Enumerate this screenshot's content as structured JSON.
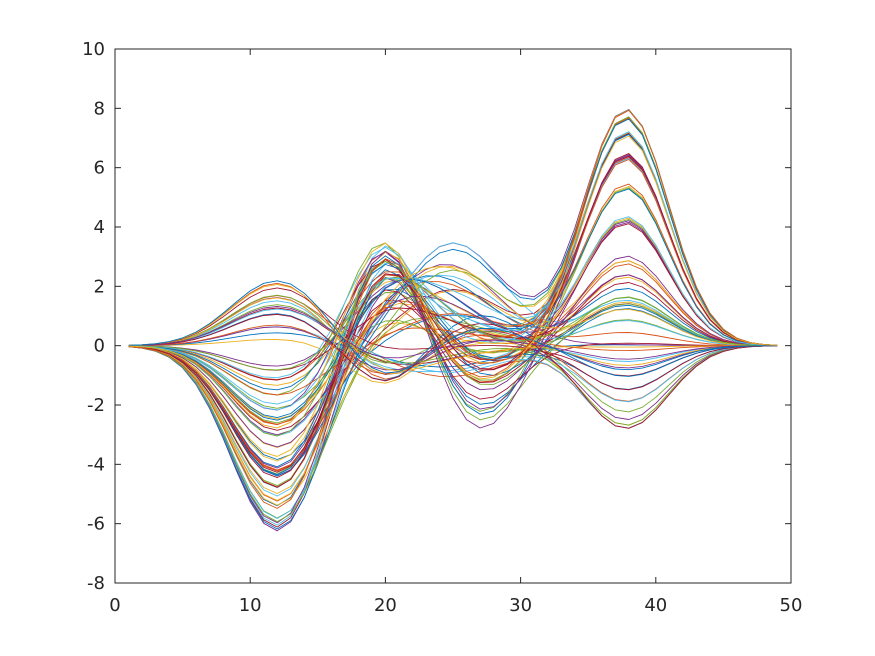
{
  "chart_data": {
    "type": "line",
    "title": "",
    "xlabel": "",
    "ylabel": "",
    "xlim": [
      0,
      50
    ],
    "ylim": [
      -8,
      10
    ],
    "x_ticks": [
      0,
      10,
      20,
      30,
      40,
      50
    ],
    "y_ticks": [
      -8,
      -6,
      -4,
      -2,
      0,
      2,
      4,
      6,
      8,
      10
    ],
    "x_tick_labels": [
      "0",
      "10",
      "20",
      "30",
      "40",
      "50"
    ],
    "y_tick_labels": [
      "-8",
      "-6",
      "-4",
      "-2",
      "0",
      "2",
      "4",
      "6",
      "8",
      "10"
    ],
    "grid": false,
    "legend": "none",
    "x": [
      1,
      49
    ],
    "series_count": 80,
    "colors": [
      "#0072BD",
      "#D95319",
      "#EDB120",
      "#7E2F8E",
      "#77AC30",
      "#4DBEEE",
      "#A2142F"
    ],
    "envelope": {
      "min_trough": {
        "x": 12,
        "y": -6.5
      },
      "first_peak": {
        "x": 20,
        "y": 3.75
      },
      "second_peak": {
        "x": 25,
        "y": 3.6
      },
      "second_trough": {
        "x": 27,
        "y": -3.0
      },
      "max_peak": {
        "x": 38,
        "y": 8.05
      }
    }
  }
}
